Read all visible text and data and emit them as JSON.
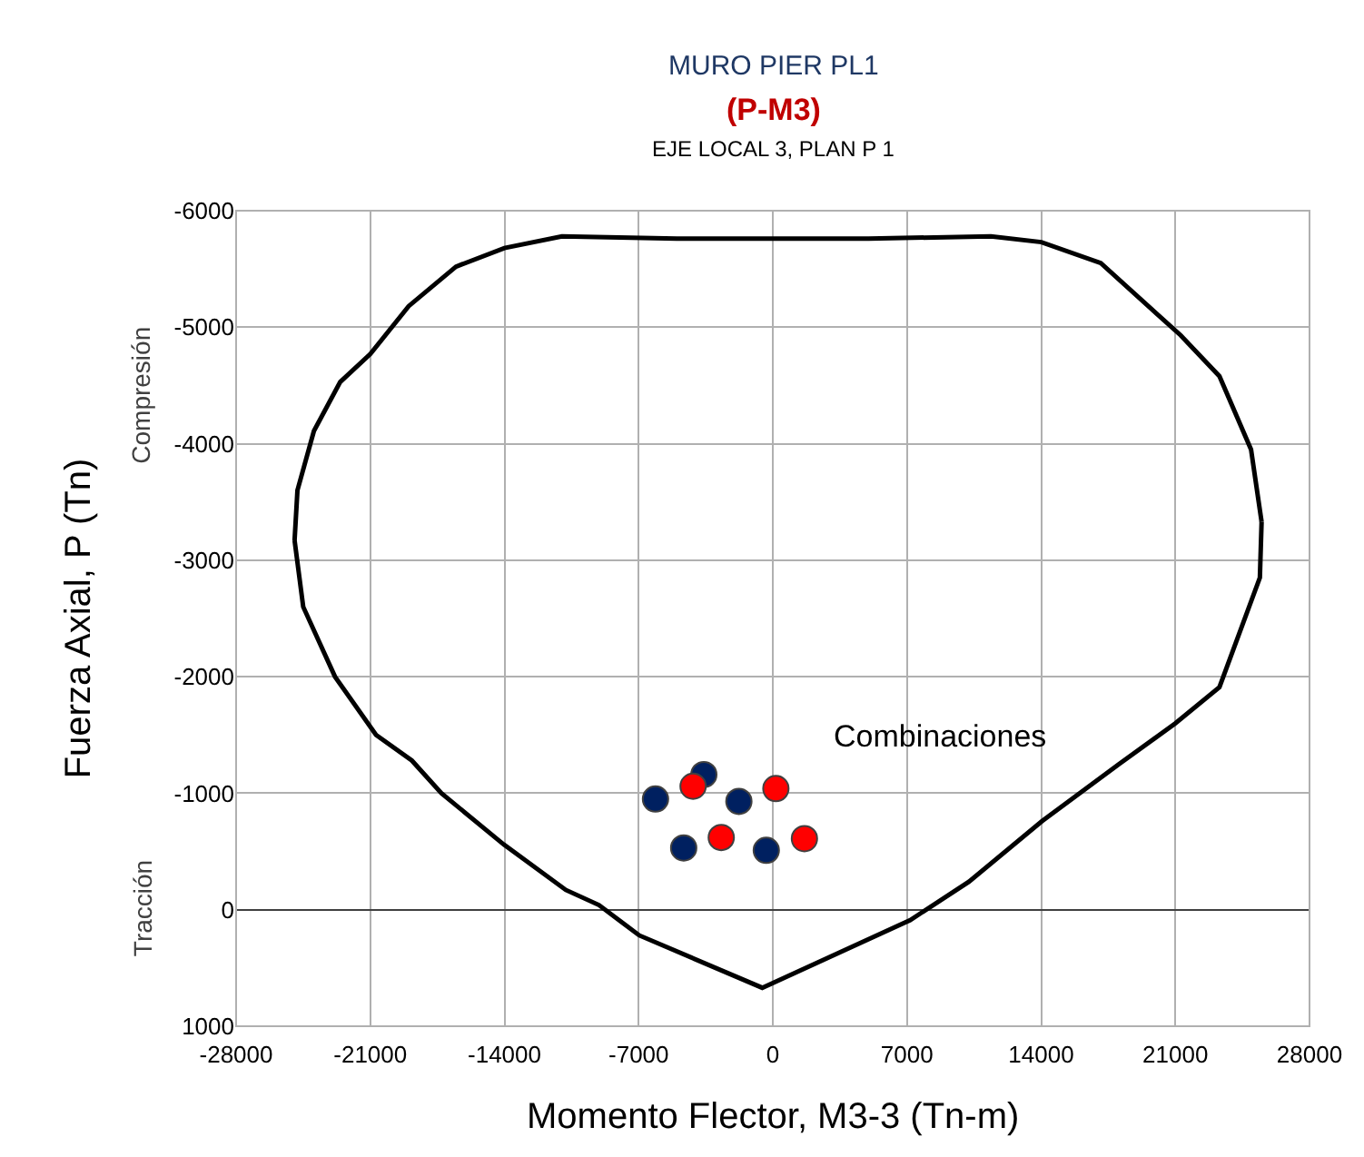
{
  "chart_data": {
    "type": "scatter",
    "title": "MURO PIER PL1",
    "subtitle": "(P-M3)",
    "xlabel": "Momento Flector, M3-3 (Tn-m)",
    "ylabel": "Fuerza Axial, P (Tn)",
    "annotations": [
      "EJE LOCAL 3, PLAN P 1",
      "Compresión",
      "Tracción",
      "Combinaciones"
    ],
    "xlim": [
      -28000,
      28000
    ],
    "xticks": [
      -28000,
      -21000,
      -14000,
      -7000,
      0,
      7000,
      14000,
      21000,
      28000
    ],
    "ylim": [
      1000,
      -6000
    ],
    "yticks": [
      -6000,
      -5000,
      -4000,
      -3000,
      -2000,
      -1000,
      0,
      1000
    ],
    "grid": true,
    "marker": "circle",
    "series": [
      {
        "type": "line",
        "color": "#000000",
        "marker": "none",
        "line_style": "solid",
        "x": [
          -24950,
          -24800,
          -23940,
          -22570,
          -21000,
          -19000,
          -16530,
          -14000,
          -11000,
          -5000,
          0,
          5000,
          11380,
          14010,
          17110,
          21280,
          23300,
          24950,
          25500,
          null,
          -24950,
          -24500,
          -22840,
          -20700,
          -18830,
          -17290,
          -14040,
          -10800,
          -9070,
          -6970,
          -550,
          7160,
          10230,
          14040,
          18070,
          21000,
          23300,
          25410,
          25500
        ],
        "values": [
          -3170,
          -3600,
          -4110,
          -4530,
          -4770,
          -5180,
          -5520,
          -5680,
          -5780,
          -5760,
          -5760,
          -5760,
          -5780,
          -5730,
          -5550,
          -4930,
          -4580,
          -3950,
          -3330,
          null,
          -3170,
          -2600,
          -2000,
          -1500,
          -1280,
          -1000,
          -560,
          -170,
          -40,
          220,
          670,
          90,
          -240,
          -760,
          -1250,
          -1600,
          -1910,
          -2850,
          -3330
        ]
      },
      {
        "color": "#002060",
        "x": [
          -3600,
          -6120,
          -1770,
          -4650,
          -340
        ],
        "values": [
          -1160,
          -950,
          -930,
          -530,
          -510
        ]
      },
      {
        "color": "#ff0000",
        "x": [
          -4160,
          160,
          -2690,
          1650
        ],
        "values": [
          -1060,
          -1040,
          -620,
          -610
        ]
      }
    ]
  }
}
